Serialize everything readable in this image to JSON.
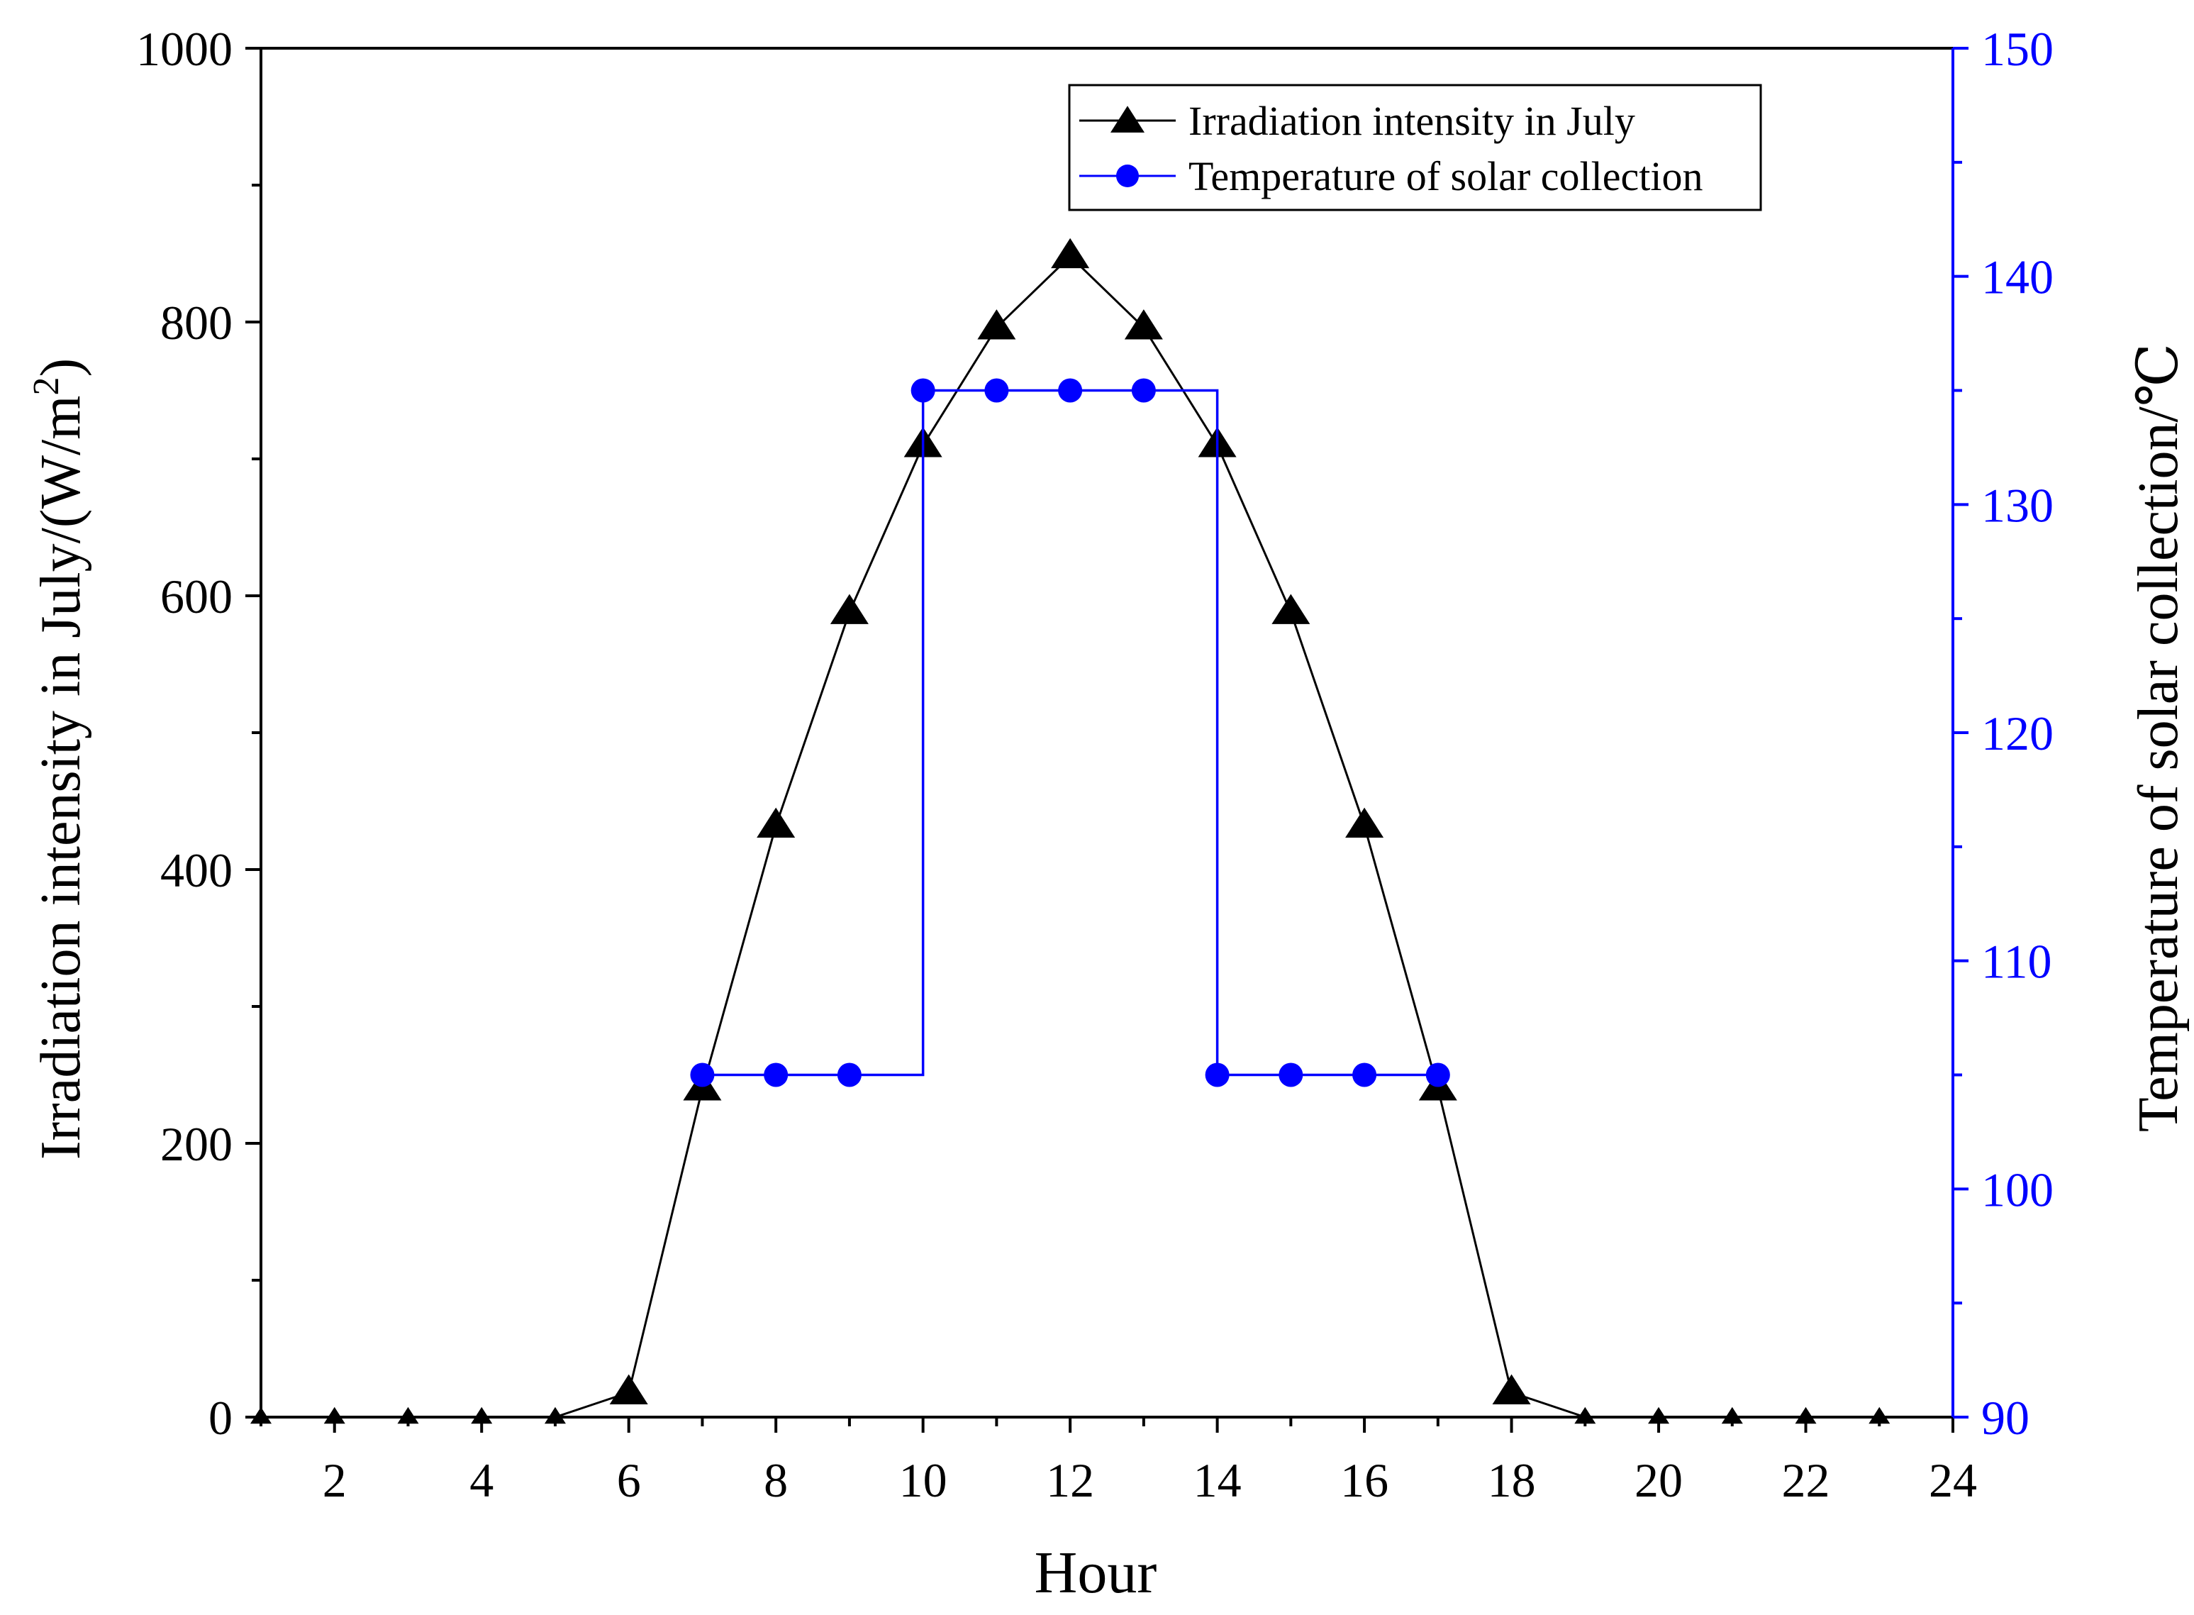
{
  "chart_data": {
    "type": "line",
    "xlabel": "Hour",
    "ylabel_left": "Irradiation intensity in July/(W/m",
    "ylabel_left_sup": "2",
    "ylabel_left_end": ")",
    "ylabel_right": "Temperature of solar collection/℃",
    "xlim": [
      1,
      24
    ],
    "ylim_left": [
      0,
      1000
    ],
    "ylim_right": [
      90,
      150
    ],
    "x_ticks": [
      2,
      4,
      6,
      8,
      10,
      12,
      14,
      16,
      18,
      20,
      22,
      24
    ],
    "y_ticks_left": [
      0,
      200,
      400,
      600,
      800,
      1000
    ],
    "y_ticks_right": [
      90,
      100,
      110,
      120,
      130,
      140,
      150
    ],
    "grid": false,
    "legend_position": "top-right",
    "series": [
      {
        "name": "Irradiation intensity in July",
        "axis": "left",
        "color": "#000000",
        "marker": "triangle",
        "x": [
          1,
          2,
          3,
          4,
          5,
          6,
          7,
          8,
          9,
          10,
          11,
          12,
          13,
          14,
          15,
          16,
          17,
          18,
          19,
          20,
          21,
          22,
          23
        ],
        "y": [
          0,
          0,
          0,
          0,
          0,
          18,
          240,
          432,
          588,
          710,
          796,
          848,
          796,
          710,
          588,
          432,
          240,
          18,
          0,
          0,
          0,
          0,
          0
        ]
      },
      {
        "name": "Temperature of solar collection",
        "axis": "right",
        "color": "#0000ff",
        "marker": "circle",
        "step": true,
        "x": [
          7,
          8,
          9,
          10,
          11,
          12,
          13,
          14,
          15,
          16,
          17
        ],
        "y": [
          105,
          105,
          105,
          135,
          135,
          135,
          135,
          105,
          105,
          105,
          105
        ]
      }
    ]
  }
}
